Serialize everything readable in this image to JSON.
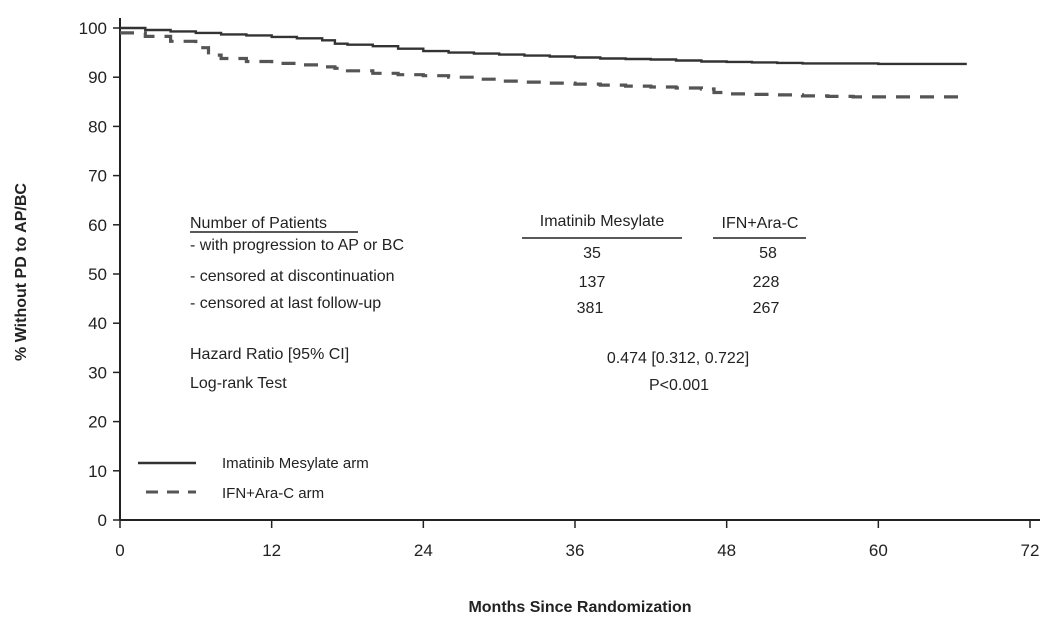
{
  "chart_data": {
    "type": "line",
    "title": "",
    "xlabel": "Months Since Randomization",
    "ylabel": "% Without PD to AP/BC",
    "xlim": [
      0,
      72
    ],
    "ylim": [
      0,
      100
    ],
    "xticks": [
      0,
      12,
      24,
      36,
      48,
      60,
      72
    ],
    "yticks": [
      0,
      10,
      20,
      30,
      40,
      50,
      60,
      70,
      80,
      90,
      100
    ],
    "grid": false,
    "legend_position": "bottom-left",
    "series": [
      {
        "name": "Imatinib Mesylate arm",
        "style": "solid",
        "color": "#333333",
        "x": [
          0,
          2,
          4,
          6,
          8,
          10,
          12,
          14,
          16,
          17,
          18,
          20,
          22,
          24,
          26,
          28,
          30,
          32,
          34,
          36,
          38,
          40,
          42,
          44,
          46,
          48,
          50,
          52,
          54,
          56,
          58,
          60,
          62,
          64,
          67
        ],
        "y": [
          100,
          99.6,
          99.3,
          99.0,
          98.7,
          98.5,
          98.2,
          97.9,
          97.5,
          96.8,
          96.6,
          96.3,
          95.8,
          95.3,
          95.0,
          94.8,
          94.6,
          94.4,
          94.2,
          94.0,
          93.8,
          93.7,
          93.6,
          93.4,
          93.2,
          93.1,
          93.0,
          92.9,
          92.8,
          92.8,
          92.8,
          92.7,
          92.7,
          92.7,
          92.7
        ]
      },
      {
        "name": "IFN+Ara-C arm",
        "style": "dashed",
        "color": "#555555",
        "x": [
          0,
          2,
          4,
          6,
          7,
          8,
          10,
          12,
          14,
          16,
          17,
          18,
          20,
          22,
          24,
          26,
          28,
          30,
          32,
          34,
          36,
          38,
          40,
          42,
          44,
          46,
          47,
          48,
          50,
          52,
          54,
          56,
          58,
          60,
          62,
          64,
          67
        ],
        "y": [
          99.0,
          98.3,
          97.3,
          96.0,
          94.5,
          93.8,
          93.2,
          92.8,
          92.5,
          92.1,
          91.8,
          91.3,
          90.8,
          90.5,
          90.3,
          90.0,
          89.6,
          89.2,
          89.0,
          88.8,
          88.6,
          88.4,
          88.2,
          88.0,
          87.8,
          87.6,
          86.9,
          86.6,
          86.5,
          86.4,
          86.2,
          86.1,
          86.0,
          86.0,
          86.0,
          86.0,
          85.9
        ]
      }
    ],
    "table": {
      "heading": "Number of Patients",
      "col1_header": "Imatinib Mesylate",
      "col2_header": "IFN+Ara-C",
      "rows": [
        {
          "label": "- with progression to AP or BC",
          "v1": "35",
          "v2": "58"
        },
        {
          "label": "- censored at discontinuation",
          "v1": "137",
          "v2": "228"
        },
        {
          "label": "- censored at last follow-up",
          "v1": "381",
          "v2": "267"
        }
      ],
      "hazard_label": "Hazard Ratio [95% CI]",
      "hazard_value": "0.474 [0.312, 0.722]",
      "logrank_label": "Log-rank Test",
      "logrank_value": "P<0.001"
    },
    "legend": [
      {
        "label": "Imatinib Mesylate arm",
        "style": "solid"
      },
      {
        "label": "IFN+Ara-C arm",
        "style": "dashed"
      }
    ]
  }
}
